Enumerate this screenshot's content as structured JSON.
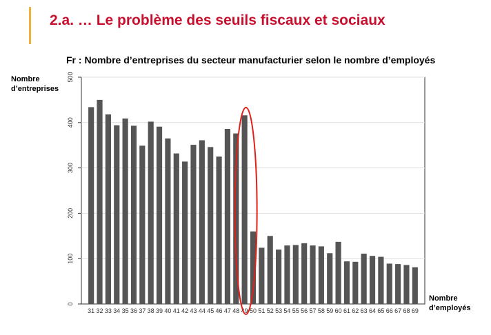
{
  "slide": {
    "title": "2.a. … Le problème des seuils fiscaux et sociaux"
  },
  "colors": {
    "title": "#c8102e",
    "accent": "#f0b23a",
    "bar": "#555555",
    "highlight": "#e0201a"
  },
  "chart_data": {
    "type": "bar",
    "title": "Fr : Nombre d’entreprises du secteur manufacturier selon le nombre d’employés",
    "ylabel_lines": [
      "Nombre",
      "d’entreprises"
    ],
    "xlabel_lines": [
      "Nombre",
      "d’employés"
    ],
    "categories": [
      "31",
      "32",
      "33",
      "34",
      "35",
      "36",
      "37",
      "38",
      "39",
      "40",
      "41",
      "42",
      "43",
      "44",
      "45",
      "46",
      "47",
      "48",
      "49",
      "50",
      "51",
      "52",
      "53",
      "54",
      "55",
      "56",
      "57",
      "58",
      "59",
      "60",
      "61",
      "62",
      "63",
      "64",
      "65",
      "66",
      "67",
      "68",
      "69"
    ],
    "values": [
      434,
      450,
      418,
      394,
      409,
      393,
      349,
      402,
      391,
      365,
      332,
      314,
      351,
      361,
      346,
      325,
      386,
      376,
      416,
      160,
      124,
      150,
      120,
      129,
      130,
      134,
      129,
      127,
      112,
      137,
      94,
      93,
      111,
      106,
      104,
      89,
      88,
      86,
      81
    ],
    "ylim": [
      0,
      500
    ],
    "yticks": [
      0,
      100,
      200,
      300,
      400,
      500
    ],
    "grid": true,
    "highlight_category": "49"
  }
}
